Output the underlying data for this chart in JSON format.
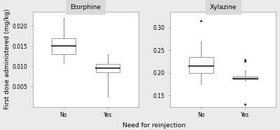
{
  "panel_titles": [
    "Etorphine",
    "Xylazine"
  ],
  "xlabel": "Need for reinjection",
  "ylabel": "First dose administered (mg/kg)",
  "categories": [
    "No",
    "Yes"
  ],
  "etorphine": {
    "No": {
      "whisker_low": 0.011,
      "q1": 0.013,
      "median": 0.015,
      "q3": 0.017,
      "whisker_high": 0.022,
      "fliers": []
    },
    "Yes": {
      "whisker_low": 0.0025,
      "q1": 0.0085,
      "median": 0.0095,
      "q3": 0.0105,
      "whisker_high": 0.013,
      "fliers": []
    }
  },
  "xylazine": {
    "No": {
      "whisker_low": 0.175,
      "q1": 0.2,
      "median": 0.215,
      "q3": 0.235,
      "whisker_high": 0.27,
      "fliers": [
        0.315
      ]
    },
    "Yes": {
      "whisker_low": 0.182,
      "q1": 0.185,
      "median": 0.188,
      "q3": 0.192,
      "whisker_high": 0.205,
      "fliers": [
        0.225,
        0.228,
        0.13
      ]
    }
  },
  "etorphine_ylim": [
    0.0,
    0.0235
  ],
  "xylazine_ylim": [
    0.125,
    0.335
  ],
  "etorphine_yticks": [
    0.005,
    0.01,
    0.015,
    0.02
  ],
  "xylazine_yticks": [
    0.15,
    0.2,
    0.25,
    0.3
  ],
  "box_color": "white",
  "median_color": "#444444",
  "whisker_color": "#888888",
  "box_edge_color": "#999999",
  "flier_color": "#333333",
  "panel_bg": "#ebebeb",
  "plot_bg": "white",
  "grid_color": "#ffffff",
  "title_bg": "#d9d9d9",
  "title_fontsize": 6.5,
  "label_fontsize": 6.5,
  "tick_fontsize": 5.5
}
